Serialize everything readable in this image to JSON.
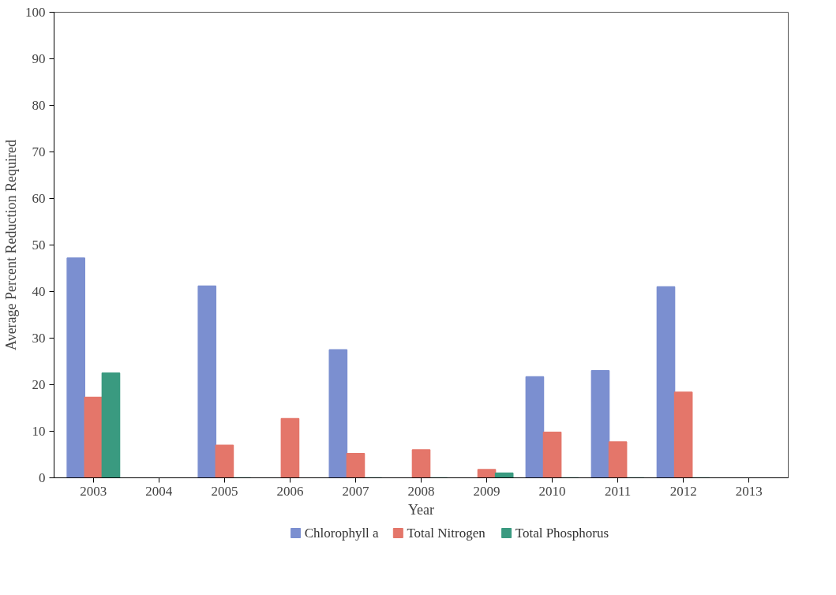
{
  "chart_data": {
    "type": "bar",
    "xlabel": "Year",
    "ylabel": "Average Percent Reduction Required",
    "categories": [
      "2003",
      "2004",
      "2005",
      "2006",
      "2007",
      "2008",
      "2009",
      "2010",
      "2011",
      "2012",
      "2013"
    ],
    "series": [
      {
        "name": "Chlorophyll a",
        "color": "#7b8fd0",
        "values": [
          47.2,
          null,
          41.2,
          null,
          27.5,
          null,
          null,
          21.7,
          23.0,
          41.0,
          null
        ]
      },
      {
        "name": "Total Nitrogen",
        "color": "#e4766a",
        "values": [
          17.3,
          null,
          7.0,
          12.7,
          5.2,
          6.0,
          1.8,
          9.8,
          7.7,
          18.4,
          null
        ]
      },
      {
        "name": "Total Phosphorus",
        "color": "#3a9a80",
        "values": [
          22.5,
          null,
          0,
          null,
          0,
          0,
          1.0,
          0,
          0,
          0,
          null
        ]
      }
    ],
    "ylim": [
      0,
      100
    ],
    "yticks": [
      0,
      10,
      20,
      30,
      40,
      50,
      60,
      70,
      80,
      90,
      100
    ],
    "grid": false,
    "legend": "bottom"
  }
}
